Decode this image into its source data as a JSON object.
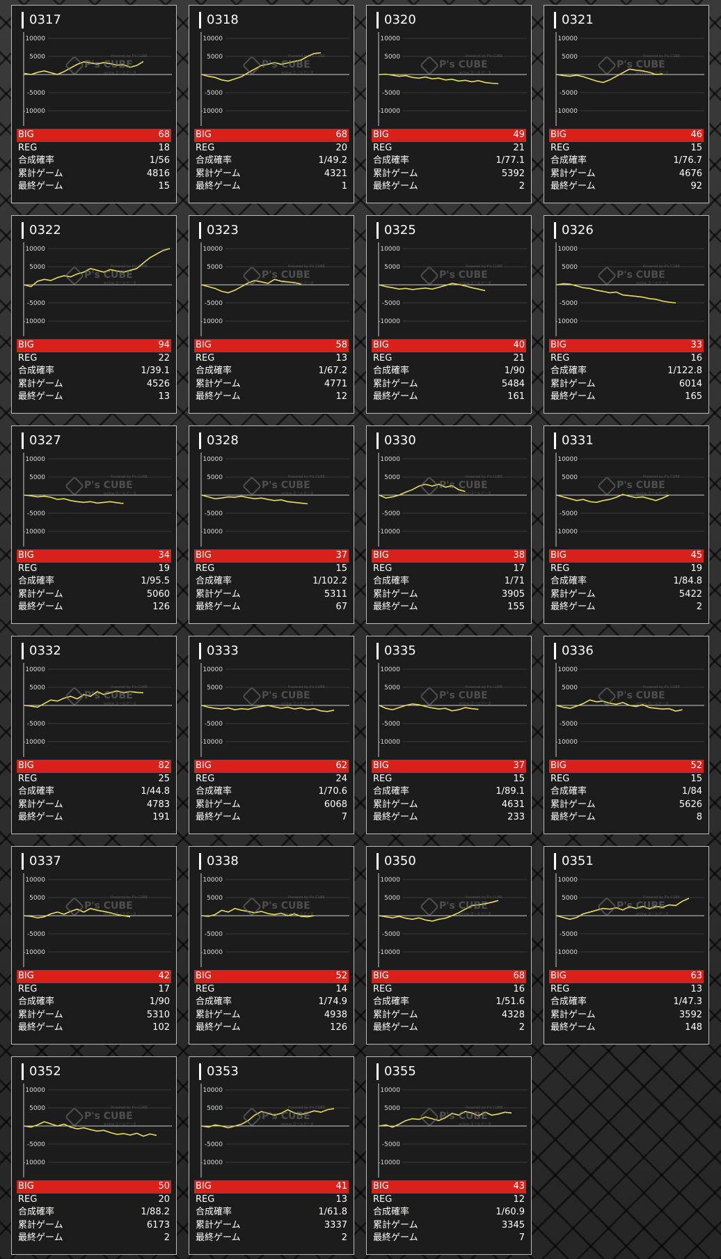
{
  "watermark": {
    "name": "P's CUBE",
    "sub1": "Powered by P's CUBE",
    "sub2": "online ホールデータ"
  },
  "y_axis_ticks": [
    "10000",
    "5000",
    "-5000",
    "-10000"
  ],
  "labels": {
    "big": "BIG",
    "reg": "REG",
    "rate": "合成確率",
    "games": "累計ゲーム",
    "last": "最終ゲーム"
  },
  "colors": {
    "accent": "#d9201a",
    "line": "#ebe05a"
  },
  "machines": [
    {
      "id": "0317",
      "big": "68",
      "reg": "18",
      "rate": "1/56",
      "games": "4816",
      "last": "15",
      "chart_data": {
        "type": "line",
        "ylim": [
          -12000,
          12000
        ],
        "x": [
          0,
          1,
          2,
          3,
          4,
          5,
          6,
          7,
          8,
          9,
          10,
          11,
          12,
          13,
          14,
          15,
          16,
          17,
          18
        ],
        "y": [
          300,
          0,
          600,
          1000,
          500,
          0,
          800,
          1800,
          2800,
          3500,
          3200,
          2900,
          3300,
          3000,
          2600,
          2700,
          2000,
          2500,
          3600
        ]
      }
    },
    {
      "id": "0318",
      "big": "68",
      "reg": "20",
      "rate": "1/49.2",
      "games": "4321",
      "last": "1",
      "chart_data": {
        "type": "line",
        "ylim": [
          -12000,
          12000
        ],
        "x": [
          0,
          1,
          2,
          3,
          4,
          5,
          6,
          7,
          8,
          9,
          10,
          11,
          12,
          13,
          14,
          15,
          16,
          17,
          18
        ],
        "y": [
          0,
          -500,
          -800,
          -1500,
          -1800,
          -1200,
          -600,
          500,
          1500,
          2500,
          2800,
          3300,
          2800,
          3200,
          3600,
          4000,
          5000,
          5800,
          6000
        ]
      }
    },
    {
      "id": "0320",
      "big": "49",
      "reg": "21",
      "rate": "1/77.1",
      "games": "5392",
      "last": "2",
      "chart_data": {
        "type": "line",
        "ylim": [
          -12000,
          12000
        ],
        "x": [
          0,
          1,
          2,
          3,
          4,
          5,
          6,
          7,
          8,
          9,
          10,
          11,
          12,
          13,
          14,
          15,
          16,
          17,
          18
        ],
        "y": [
          0,
          100,
          -200,
          -500,
          -300,
          -800,
          -1000,
          -700,
          -1200,
          -1000,
          -1500,
          -1300,
          -1800,
          -1600,
          -2000,
          -1700,
          -2200,
          -2400,
          -2500
        ]
      }
    },
    {
      "id": "0321",
      "big": "46",
      "reg": "15",
      "rate": "1/76.7",
      "games": "4676",
      "last": "92",
      "chart_data": {
        "type": "line",
        "ylim": [
          -12000,
          12000
        ],
        "x": [
          0,
          1,
          2,
          3,
          4,
          5,
          6,
          7,
          8,
          9,
          10,
          11,
          12,
          13,
          14,
          15,
          16
        ],
        "y": [
          0,
          -300,
          -500,
          -200,
          -600,
          -1200,
          -1800,
          -2200,
          -1500,
          -500,
          500,
          1500,
          1200,
          1000,
          600,
          0,
          200
        ]
      }
    },
    {
      "id": "0322",
      "big": "94",
      "reg": "22",
      "rate": "1/39.1",
      "games": "4526",
      "last": "13",
      "chart_data": {
        "type": "line",
        "ylim": [
          -12000,
          12000
        ],
        "x": [
          0,
          1,
          2,
          3,
          4,
          5,
          6,
          7,
          8,
          9,
          10,
          11,
          12,
          13,
          14,
          15,
          16,
          17,
          18,
          19,
          20,
          21,
          22
        ],
        "y": [
          0,
          -500,
          1000,
          1500,
          1200,
          2000,
          2500,
          2200,
          3000,
          3500,
          4500,
          4000,
          3500,
          4200,
          3800,
          3500,
          4000,
          4500,
          6000,
          7500,
          8500,
          9500,
          10000
        ]
      }
    },
    {
      "id": "0323",
      "big": "58",
      "reg": "13",
      "rate": "1/67.2",
      "games": "4771",
      "last": "12",
      "chart_data": {
        "type": "line",
        "ylim": [
          -12000,
          12000
        ],
        "x": [
          0,
          1,
          2,
          3,
          4,
          5,
          6,
          7,
          8,
          9,
          10,
          11,
          12,
          13,
          14,
          15
        ],
        "y": [
          0,
          -500,
          -1000,
          -1800,
          -2200,
          -1500,
          -500,
          500,
          1200,
          800,
          400,
          1500,
          1000,
          800,
          600,
          200
        ]
      }
    },
    {
      "id": "0325",
      "big": "40",
      "reg": "21",
      "rate": "1/90",
      "games": "5484",
      "last": "161",
      "chart_data": {
        "type": "line",
        "ylim": [
          -12000,
          12000
        ],
        "x": [
          0,
          1,
          2,
          3,
          4,
          5,
          6,
          7,
          8,
          9,
          10,
          11,
          12,
          13,
          14,
          15,
          16
        ],
        "y": [
          0,
          -500,
          -800,
          -1200,
          -1000,
          -1300,
          -1100,
          -900,
          -1200,
          -700,
          -200,
          400,
          100,
          -300,
          -800,
          -1200,
          -1600
        ]
      }
    },
    {
      "id": "0326",
      "big": "33",
      "reg": "16",
      "rate": "1/122.8",
      "games": "6014",
      "last": "165",
      "chart_data": {
        "type": "line",
        "ylim": [
          -12000,
          12000
        ],
        "x": [
          0,
          1,
          2,
          3,
          4,
          5,
          6,
          7,
          8,
          9,
          10,
          11,
          12,
          13,
          14,
          15,
          16,
          17,
          18
        ],
        "y": [
          0,
          300,
          200,
          -300,
          -800,
          -1000,
          -1500,
          -1800,
          -2200,
          -2000,
          -2800,
          -3000,
          -3200,
          -3400,
          -3800,
          -4000,
          -4500,
          -4800,
          -5000
        ]
      }
    },
    {
      "id": "0327",
      "big": "34",
      "reg": "19",
      "rate": "1/95.5",
      "games": "5060",
      "last": "126",
      "chart_data": {
        "type": "line",
        "ylim": [
          -12000,
          12000
        ],
        "x": [
          0,
          1,
          2,
          3,
          4,
          5,
          6,
          7,
          8,
          9,
          10,
          11,
          12,
          13,
          14,
          15
        ],
        "y": [
          0,
          -200,
          -500,
          -300,
          -600,
          -1200,
          -1000,
          -1500,
          -1800,
          -2000,
          -1800,
          -2200,
          -2000,
          -1800,
          -2100,
          -2300
        ]
      }
    },
    {
      "id": "0328",
      "big": "37",
      "reg": "15",
      "rate": "1/102.2",
      "games": "5311",
      "last": "67",
      "chart_data": {
        "type": "line",
        "ylim": [
          -12000,
          12000
        ],
        "x": [
          0,
          1,
          2,
          3,
          4,
          5,
          6,
          7,
          8,
          9,
          10,
          11,
          12,
          13,
          14,
          15,
          16
        ],
        "y": [
          0,
          -500,
          -1000,
          -800,
          -500,
          -600,
          -300,
          -700,
          -1000,
          -800,
          -1200,
          -1500,
          -1300,
          -1800,
          -2000,
          -2200,
          -2400
        ]
      }
    },
    {
      "id": "0330",
      "big": "38",
      "reg": "17",
      "rate": "1/71",
      "games": "3905",
      "last": "155",
      "chart_data": {
        "type": "line",
        "ylim": [
          -12000,
          12000
        ],
        "x": [
          0,
          1,
          2,
          3,
          4,
          5,
          6,
          7,
          8,
          9,
          10,
          11,
          12,
          13
        ],
        "y": [
          0,
          -800,
          -500,
          0,
          800,
          1500,
          2500,
          3000,
          2500,
          3000,
          2200,
          2600,
          1500,
          1000
        ]
      }
    },
    {
      "id": "0331",
      "big": "45",
      "reg": "19",
      "rate": "1/84.8",
      "games": "5422",
      "last": "2",
      "chart_data": {
        "type": "line",
        "ylim": [
          -12000,
          12000
        ],
        "x": [
          0,
          1,
          2,
          3,
          4,
          5,
          6,
          7,
          8,
          9,
          10,
          11,
          12,
          13,
          14,
          15,
          16,
          17
        ],
        "y": [
          0,
          -500,
          -1000,
          -1500,
          -1200,
          -1800,
          -2000,
          -1500,
          -1200,
          -600,
          200,
          -300,
          -700,
          -500,
          -1000,
          -1500,
          -800,
          0
        ]
      }
    },
    {
      "id": "0332",
      "big": "82",
      "reg": "25",
      "rate": "1/44.8",
      "games": "4783",
      "last": "191",
      "chart_data": {
        "type": "line",
        "ylim": [
          -12000,
          12000
        ],
        "x": [
          0,
          1,
          2,
          3,
          4,
          5,
          6,
          7,
          8,
          9,
          10,
          11,
          12,
          13,
          14,
          15,
          16,
          17,
          18
        ],
        "y": [
          0,
          -200,
          -500,
          500,
          1500,
          1200,
          2000,
          2500,
          1800,
          3000,
          2500,
          3800,
          3000,
          3500,
          4000,
          3500,
          3800,
          3600,
          3500
        ]
      }
    },
    {
      "id": "0333",
      "big": "62",
      "reg": "24",
      "rate": "1/70.6",
      "games": "6068",
      "last": "7",
      "chart_data": {
        "type": "line",
        "ylim": [
          -12000,
          12000
        ],
        "x": [
          0,
          1,
          2,
          3,
          4,
          5,
          6,
          7,
          8,
          9,
          10,
          11,
          12,
          13,
          14,
          15,
          16,
          17,
          18,
          19,
          20
        ],
        "y": [
          0,
          -500,
          -800,
          -1000,
          -700,
          -1200,
          -900,
          -1100,
          -600,
          -300,
          0,
          -400,
          -800,
          -500,
          -1000,
          -700,
          -1200,
          -900,
          -1500,
          -1700,
          -1300
        ]
      }
    },
    {
      "id": "0335",
      "big": "37",
      "reg": "15",
      "rate": "1/89.1",
      "games": "4631",
      "last": "233",
      "chart_data": {
        "type": "line",
        "ylim": [
          -12000,
          12000
        ],
        "x": [
          0,
          1,
          2,
          3,
          4,
          5,
          6,
          7,
          8,
          9,
          10,
          11,
          12,
          13,
          14,
          15
        ],
        "y": [
          0,
          -800,
          -1200,
          -600,
          0,
          400,
          200,
          -300,
          -700,
          -1000,
          -800,
          -1500,
          -1200,
          -600,
          -900,
          -1100
        ]
      }
    },
    {
      "id": "0336",
      "big": "52",
      "reg": "15",
      "rate": "1/84",
      "games": "5626",
      "last": "8",
      "chart_data": {
        "type": "line",
        "ylim": [
          -12000,
          12000
        ],
        "x": [
          0,
          1,
          2,
          3,
          4,
          5,
          6,
          7,
          8,
          9,
          10,
          11,
          12,
          13,
          14,
          15,
          16,
          17,
          18,
          19
        ],
        "y": [
          0,
          -500,
          -800,
          -200,
          500,
          1500,
          1000,
          1200,
          600,
          300,
          800,
          0,
          -300,
          200,
          -600,
          -800,
          -1000,
          -900,
          -1600,
          -1200
        ]
      }
    },
    {
      "id": "0337",
      "big": "42",
      "reg": "17",
      "rate": "1/90",
      "games": "5310",
      "last": "102",
      "chart_data": {
        "type": "line",
        "ylim": [
          -12000,
          12000
        ],
        "x": [
          0,
          1,
          2,
          3,
          4,
          5,
          6,
          7,
          8,
          9,
          10,
          11,
          12,
          13,
          14,
          15,
          16
        ],
        "y": [
          0,
          -200,
          -600,
          -300,
          500,
          1000,
          400,
          1200,
          1800,
          1000,
          2000,
          1500,
          1200,
          800,
          300,
          0,
          -300
        ]
      }
    },
    {
      "id": "0338",
      "big": "52",
      "reg": "14",
      "rate": "1/74.9",
      "games": "4938",
      "last": "126",
      "chart_data": {
        "type": "line",
        "ylim": [
          -12000,
          12000
        ],
        "x": [
          0,
          1,
          2,
          3,
          4,
          5,
          6,
          7,
          8,
          9,
          10,
          11,
          12,
          13,
          14,
          15,
          16,
          17
        ],
        "y": [
          0,
          -200,
          300,
          1500,
          1000,
          2000,
          1500,
          1200,
          800,
          1200,
          600,
          300,
          700,
          0,
          500,
          -200,
          -300,
          0
        ]
      }
    },
    {
      "id": "0350",
      "big": "68",
      "reg": "16",
      "rate": "1/51.6",
      "games": "4328",
      "last": "2",
      "chart_data": {
        "type": "line",
        "ylim": [
          -12000,
          12000
        ],
        "x": [
          0,
          1,
          2,
          3,
          4,
          5,
          6,
          7,
          8,
          9,
          10,
          11,
          12,
          13,
          14,
          15,
          16,
          17,
          18
        ],
        "y": [
          0,
          -300,
          -600,
          -200,
          -700,
          -1000,
          -600,
          -1200,
          -1500,
          -1000,
          -700,
          0,
          800,
          1800,
          2800,
          3000,
          3300,
          3700,
          4200
        ]
      }
    },
    {
      "id": "0351",
      "big": "63",
      "reg": "13",
      "rate": "1/47.3",
      "games": "3592",
      "last": "148",
      "chart_data": {
        "type": "line",
        "ylim": [
          -12000,
          12000
        ],
        "x": [
          0,
          1,
          2,
          3,
          4,
          5,
          6,
          7,
          8,
          9,
          10,
          11,
          12,
          13,
          14,
          15,
          16,
          17,
          18,
          19,
          20
        ],
        "y": [
          0,
          -500,
          -1000,
          -500,
          500,
          1000,
          1500,
          2000,
          1800,
          2200,
          1600,
          2500,
          2000,
          2600,
          1900,
          2600,
          2300,
          3000,
          2800,
          4000,
          4800
        ]
      }
    },
    {
      "id": "0352",
      "big": "50",
      "reg": "20",
      "rate": "1/88.2",
      "games": "6173",
      "last": "2",
      "chart_data": {
        "type": "line",
        "ylim": [
          -12000,
          12000
        ],
        "x": [
          0,
          1,
          2,
          3,
          4,
          5,
          6,
          7,
          8,
          9,
          10,
          11,
          12,
          13,
          14,
          15,
          16,
          17,
          18,
          19,
          20
        ],
        "y": [
          0,
          -300,
          300,
          1200,
          600,
          0,
          500,
          -300,
          -800,
          -500,
          -1000,
          -1400,
          -1200,
          -1800,
          -2300,
          -2100,
          -2500,
          -2000,
          -2800,
          -2200,
          -2600
        ]
      }
    },
    {
      "id": "0353",
      "big": "41",
      "reg": "13",
      "rate": "1/61.8",
      "games": "3337",
      "last": "2",
      "chart_data": {
        "type": "line",
        "ylim": [
          -12000,
          12000
        ],
        "x": [
          0,
          1,
          2,
          3,
          4,
          5,
          6,
          7,
          8,
          9,
          10,
          11,
          12,
          13,
          14,
          15,
          16,
          17,
          18,
          19,
          20
        ],
        "y": [
          0,
          -300,
          300,
          0,
          -500,
          0,
          500,
          1500,
          3000,
          4000,
          3500,
          3000,
          3500,
          4500,
          3600,
          3200,
          3600,
          4200,
          3800,
          4500,
          4800
        ]
      }
    },
    {
      "id": "0355",
      "big": "43",
      "reg": "12",
      "rate": "1/60.9",
      "games": "3345",
      "last": "7",
      "chart_data": {
        "type": "line",
        "ylim": [
          -12000,
          12000
        ],
        "x": [
          0,
          1,
          2,
          3,
          4,
          5,
          6,
          7,
          8,
          9,
          10,
          11,
          12,
          13,
          14,
          15,
          16,
          17,
          18,
          19,
          20
        ],
        "y": [
          0,
          300,
          -300,
          500,
          1500,
          2000,
          1800,
          2500,
          2000,
          1500,
          2300,
          3500,
          3000,
          4000,
          3600,
          2800,
          3800,
          3000,
          3300,
          3800,
          3600
        ]
      }
    }
  ]
}
